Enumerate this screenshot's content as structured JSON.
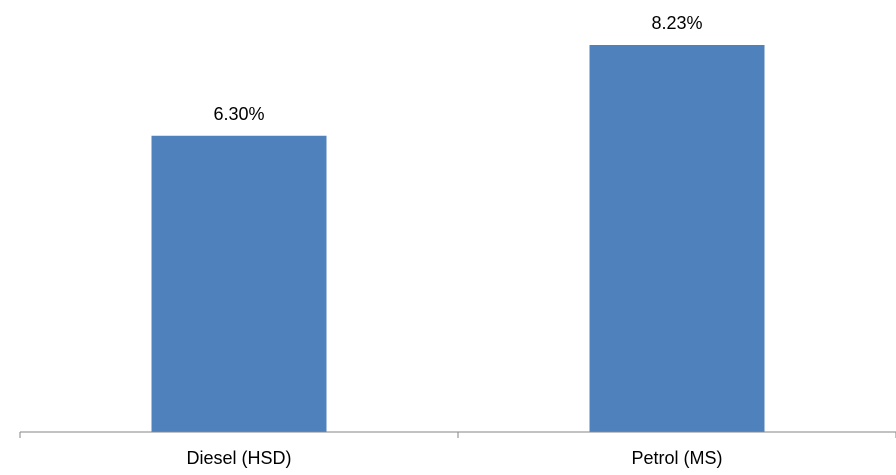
{
  "chart_data": {
    "type": "bar",
    "categories": [
      "Diesel (HSD)",
      "Petrol (MS)"
    ],
    "values": [
      6.3,
      8.23
    ],
    "data_labels": [
      "6.30%",
      "8.23%"
    ],
    "title": "",
    "xlabel": "",
    "ylabel": "",
    "ylim": [
      0,
      8.5
    ],
    "grid": false,
    "legend": "none",
    "colors": {
      "bar": "#4F81BD",
      "axis": "#868686",
      "text": "#000000"
    }
  }
}
